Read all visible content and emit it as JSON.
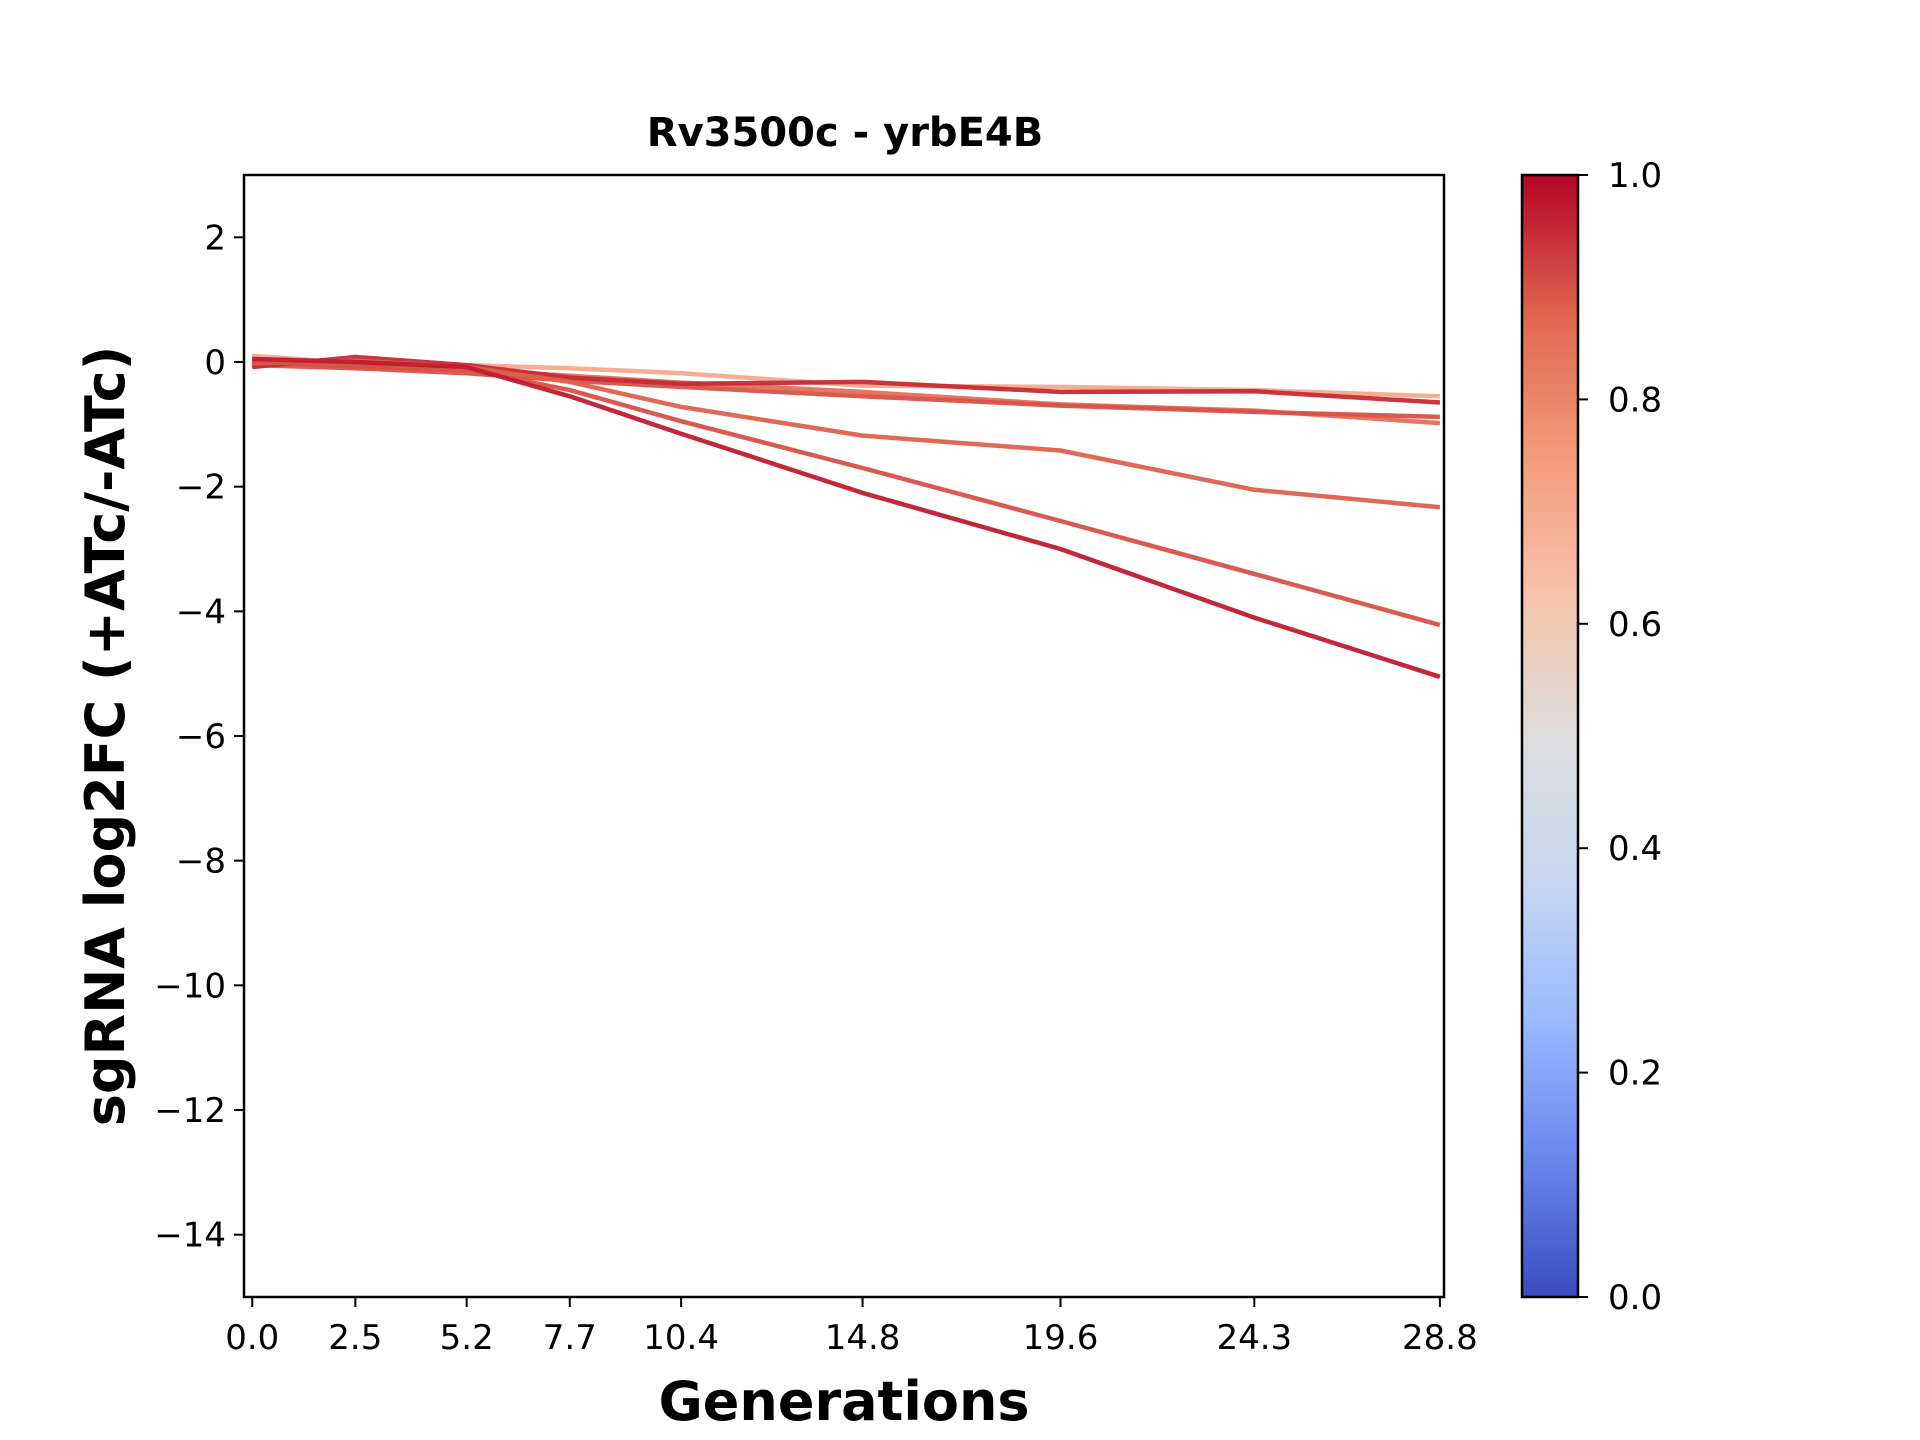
{
  "chart_data": {
    "type": "line",
    "title": "Rv3500c - yrbE4B",
    "xlabel": "Generations",
    "ylabel": "sgRNA log2FC (+ATc/-ATc)",
    "x": [
      0.0,
      2.5,
      5.2,
      7.7,
      10.4,
      14.8,
      19.6,
      24.3,
      28.8
    ],
    "x_tick_labels": [
      "0.0",
      "2.5",
      "5.2",
      "7.7",
      "10.4",
      "14.8",
      "19.6",
      "24.3",
      "28.8"
    ],
    "xlim": [
      -0.2,
      28.9
    ],
    "ylim": [
      -15,
      3
    ],
    "y_ticks": [
      2,
      0,
      -2,
      -4,
      -6,
      -8,
      -10,
      -12,
      -14
    ],
    "y_tick_labels": [
      "2",
      "0",
      "−2",
      "−4",
      "−6",
      "−8",
      "−10",
      "−12",
      "−14"
    ],
    "grid": false,
    "series": [
      {
        "color_value": 0.7,
        "values": [
          0.1,
          -0.02,
          -0.05,
          -0.1,
          -0.18,
          -0.38,
          -0.4,
          -0.45,
          -0.55
        ]
      },
      {
        "color_value": 0.85,
        "values": [
          0.02,
          -0.08,
          -0.12,
          -0.22,
          -0.33,
          -0.48,
          -0.68,
          -0.78,
          -0.98
        ]
      },
      {
        "color_value": 0.9,
        "values": [
          -0.05,
          -0.1,
          -0.18,
          -0.3,
          -0.4,
          -0.55,
          -0.7,
          -0.8,
          -0.88
        ]
      },
      {
        "color_value": 0.95,
        "values": [
          -0.08,
          0.08,
          -0.05,
          -0.25,
          -0.35,
          -0.32,
          -0.48,
          -0.47,
          -0.65
        ]
      },
      {
        "color_value": 0.88,
        "values": [
          -0.02,
          0.02,
          -0.08,
          -0.32,
          -0.72,
          -1.18,
          -1.42,
          -2.05,
          -2.33
        ]
      },
      {
        "color_value": 0.9,
        "values": [
          0.0,
          -0.05,
          -0.12,
          -0.45,
          -0.95,
          -1.7,
          -2.55,
          -3.4,
          -4.22
        ]
      },
      {
        "color_value": 0.97,
        "values": [
          0.05,
          0.0,
          -0.08,
          -0.55,
          -1.15,
          -2.1,
          -3.0,
          -4.1,
          -5.05
        ]
      }
    ],
    "colorbar": {
      "colormap": "coolwarm",
      "range": [
        0.0,
        1.0
      ],
      "ticks": [
        "0.0",
        "0.2",
        "0.4",
        "0.6",
        "0.8",
        "1.0"
      ],
      "stops": [
        "#3b4cc0",
        "#6788ee",
        "#9abbff",
        "#c9d7f0",
        "#dddddd",
        "#f6c3a9",
        "#f49a7b",
        "#e0654f",
        "#b40426"
      ]
    }
  }
}
